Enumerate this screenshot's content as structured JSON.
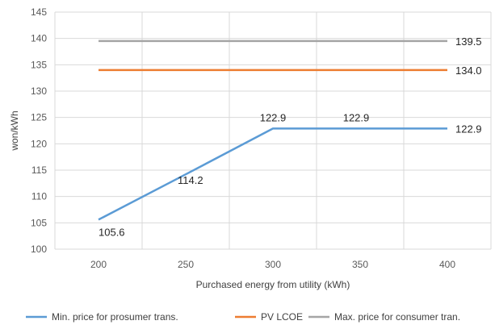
{
  "chart_data": {
    "type": "line",
    "title": "",
    "xlabel": "Purchased energy from utility (kWh)",
    "ylabel": "won/kWh",
    "categories": [
      "200",
      "250",
      "300",
      "350",
      "400"
    ],
    "x": [
      200,
      250,
      300,
      350,
      400
    ],
    "ylim": [
      100,
      145
    ],
    "yticks": [
      100,
      105,
      110,
      115,
      120,
      125,
      130,
      135,
      140,
      145
    ],
    "yticks_labels": [
      "100",
      "105",
      "110",
      "115",
      "120",
      "125",
      "130",
      "135",
      "140",
      "145"
    ],
    "grid": true,
    "legend_position": "bottom",
    "series": [
      {
        "name": "Min. price for prosumer trans.",
        "color": "#5B9BD5",
        "values": [
          105.6,
          114.2,
          122.9,
          122.9,
          122.9
        ],
        "labels": [
          "105.6",
          "114.2",
          "122.9",
          "122.9",
          "122.9"
        ]
      },
      {
        "name": "PV LCOE",
        "color": "#ED7D31",
        "values": [
          134.0,
          134.0,
          134.0,
          134.0,
          134.0
        ],
        "labels": [
          "",
          "",
          "",
          "",
          "134.0"
        ]
      },
      {
        "name": "Max. price for consumer tran.",
        "color": "#A5A5A5",
        "values": [
          139.5,
          139.5,
          139.5,
          139.5,
          139.5
        ],
        "labels": [
          "",
          "",
          "",
          "",
          "139.5"
        ]
      }
    ]
  }
}
